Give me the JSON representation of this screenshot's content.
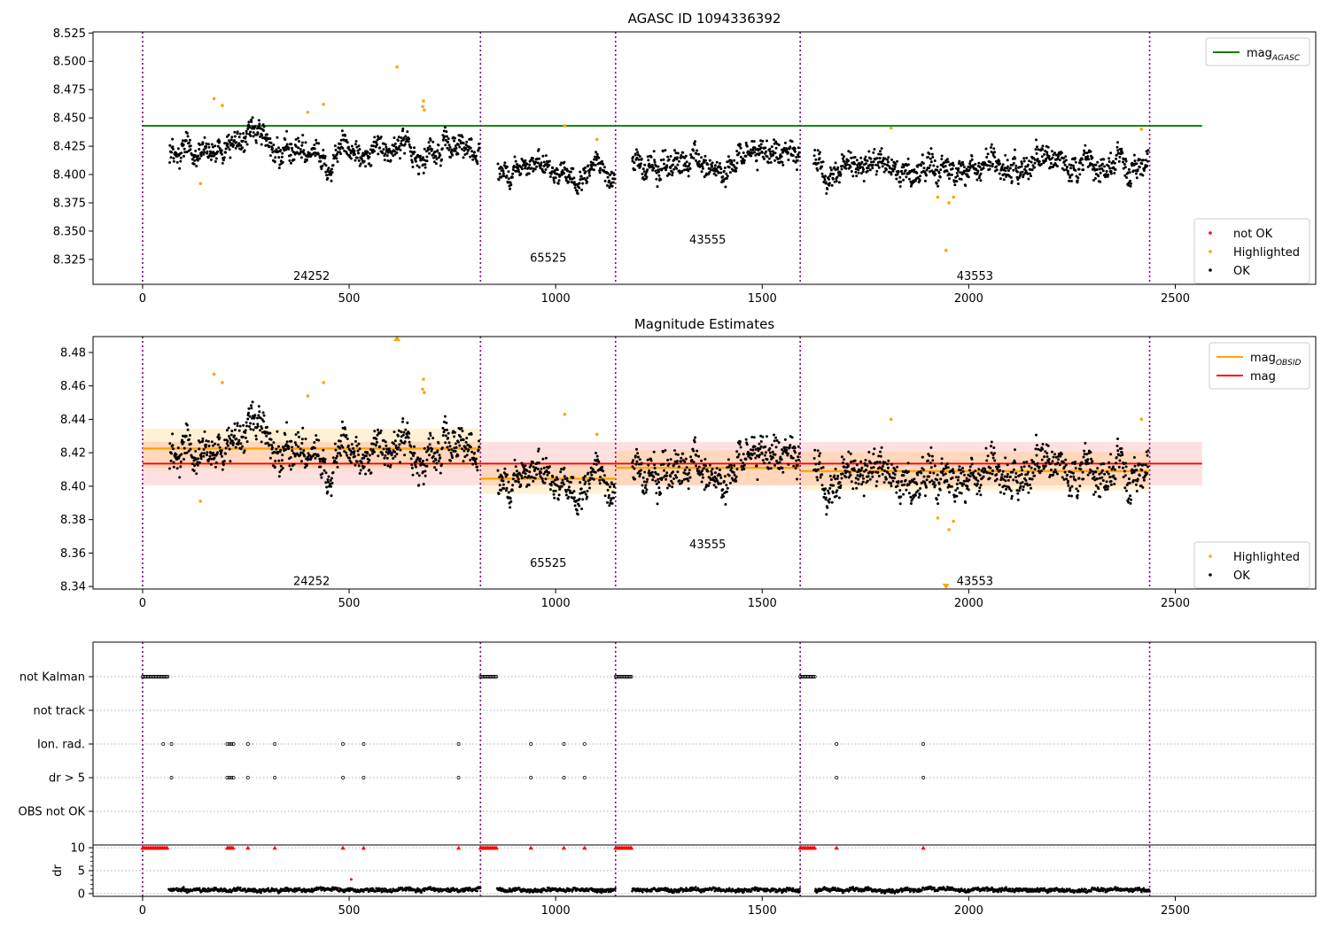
{
  "chart_data": [
    {
      "type": "scatter",
      "title": "AGASC ID 1094336392",
      "xlim": [
        -120,
        2840
      ],
      "ylim": [
        8.303,
        8.526
      ],
      "xticks": [
        0,
        500,
        1000,
        1500,
        2000,
        2500
      ],
      "yticks": [
        8.325,
        8.35,
        8.375,
        8.4,
        8.425,
        8.45,
        8.475,
        8.5,
        8.525
      ],
      "grid": false,
      "legend_top": {
        "placement": "top-right",
        "entries": [
          {
            "label": "mag",
            "subscript": "AGASC",
            "color": "#008000",
            "kind": "line"
          }
        ]
      },
      "legend_bottom": {
        "placement": "bottom-right",
        "entries": [
          {
            "label": "not OK",
            "color": "#ff0000",
            "kind": "point"
          },
          {
            "label": "Highlighted",
            "color": "#ffa500",
            "kind": "point"
          },
          {
            "label": "OK",
            "color": "#000000",
            "kind": "point"
          }
        ]
      },
      "hlines": [
        {
          "y": 8.443,
          "x0": 0,
          "x1": 2565,
          "color": "#008000",
          "name": "mag_AGASC"
        }
      ],
      "vlines": [
        0,
        818,
        1145,
        1592,
        2438
      ],
      "obsid_labels": [
        {
          "text": "24252",
          "x": 409,
          "y": 8.311
        },
        {
          "text": "65525",
          "x": 982,
          "y": 8.327
        },
        {
          "text": "43555",
          "x": 1368,
          "y": 8.343
        },
        {
          "text": "43553",
          "x": 2015,
          "y": 8.311
        }
      ],
      "series": [
        {
          "name": "OK",
          "color": "#000000",
          "segments": [
            {
              "x0": 65,
              "x1": 815,
              "mean": 8.422,
              "noise": 0.0095
            },
            {
              "x0": 860,
              "x1": 1143,
              "mean": 8.404,
              "noise": 0.0085
            },
            {
              "x0": 1185,
              "x1": 1590,
              "mean": 8.412,
              "noise": 0.01
            },
            {
              "x0": 1625,
              "x1": 2435,
              "mean": 8.408,
              "noise": 0.01
            }
          ]
        },
        {
          "name": "Highlighted",
          "color": "#ffa500",
          "points": [
            [
              140,
              8.392
            ],
            [
              173,
              8.467
            ],
            [
              193,
              8.461
            ],
            [
              400,
              8.455
            ],
            [
              438,
              8.462
            ],
            [
              616,
              8.495
            ],
            [
              680,
              8.465
            ],
            [
              678,
              8.46
            ],
            [
              682,
              8.457
            ],
            [
              1022,
              8.443
            ],
            [
              1100,
              8.431
            ],
            [
              1812,
              8.441
            ],
            [
              1925,
              8.38
            ],
            [
              1945,
              8.333
            ],
            [
              1952,
              8.375
            ],
            [
              1963,
              8.38
            ],
            [
              2418,
              8.44
            ]
          ]
        }
      ]
    },
    {
      "type": "scatter",
      "title": "Magnitude Estimates",
      "xlim": [
        -120,
        2840
      ],
      "ylim": [
        8.3385,
        8.4895
      ],
      "xticks": [
        0,
        500,
        1000,
        1500,
        2000,
        2500
      ],
      "yticks": [
        8.34,
        8.36,
        8.38,
        8.4,
        8.42,
        8.44,
        8.46,
        8.48
      ],
      "grid": false,
      "legend_top": {
        "placement": "top-right",
        "entries": [
          {
            "label": "mag",
            "subscript": "OBSID",
            "color": "#ffa500",
            "kind": "line"
          },
          {
            "label": "mag",
            "subscript": "",
            "color": "#ff0000",
            "kind": "line"
          }
        ]
      },
      "legend_bottom": {
        "placement": "bottom-right",
        "entries": [
          {
            "label": "Highlighted",
            "color": "#ffa500",
            "kind": "point"
          },
          {
            "label": "OK",
            "color": "#000000",
            "kind": "point"
          }
        ]
      },
      "mag": {
        "y": 8.4135,
        "band": [
          8.4005,
          8.4265
        ],
        "x0": 0,
        "x1": 2565
      },
      "mag_obsid": [
        {
          "x0": 0,
          "x1": 818,
          "y": 8.4225,
          "band": [
            8.4105,
            8.4345
          ]
        },
        {
          "x0": 818,
          "x1": 1145,
          "y": 8.4045,
          "band": [
            8.3955,
            8.4135
          ]
        },
        {
          "x0": 1145,
          "x1": 1592,
          "y": 8.411,
          "band": [
            8.4005,
            8.4215
          ]
        },
        {
          "x0": 1592,
          "x1": 2438,
          "y": 8.409,
          "band": [
            8.3975,
            8.4205
          ]
        }
      ],
      "vlines": [
        0,
        818,
        1145,
        1592,
        2438
      ],
      "obsid_labels": [
        {
          "text": "24252",
          "x": 409,
          "y": 8.3435
        },
        {
          "text": "65525",
          "x": 982,
          "y": 8.3545
        },
        {
          "text": "43555",
          "x": 1368,
          "y": 8.3655
        },
        {
          "text": "43553",
          "x": 2015,
          "y": 8.3435
        }
      ],
      "highlighted_points": [
        [
          140,
          8.391
        ],
        [
          173,
          8.467
        ],
        [
          193,
          8.462
        ],
        [
          400,
          8.454
        ],
        [
          438,
          8.462
        ],
        [
          680,
          8.464
        ],
        [
          678,
          8.458
        ],
        [
          682,
          8.456
        ],
        [
          1022,
          8.443
        ],
        [
          1100,
          8.431
        ],
        [
          1812,
          8.44
        ],
        [
          1925,
          8.381
        ],
        [
          1952,
          8.374
        ],
        [
          1963,
          8.379
        ],
        [
          2418,
          8.44
        ]
      ],
      "clipped_markers": [
        {
          "x": 616,
          "edge": "top"
        },
        {
          "x": 1945,
          "edge": "bottom"
        }
      ]
    },
    {
      "type": "scatter",
      "title": "",
      "xlim": [
        -120,
        2840
      ],
      "xticks": [
        0,
        500,
        1000,
        1500,
        2000,
        2500
      ],
      "flag_rows": [
        "not Kalman",
        "not track",
        "Ion. rad.",
        "dr > 5",
        "OBS not OK"
      ],
      "flags": {
        "not Kalman": [
          [
            0,
            62
          ],
          [
            818,
            858
          ],
          [
            1145,
            1185
          ],
          [
            1592,
            1628
          ]
        ],
        "Ion. rad.": [
          50,
          70,
          205,
          210,
          215,
          220,
          255,
          320,
          485,
          535,
          765,
          940,
          1020,
          1070,
          1680,
          1890
        ],
        "dr > 5": [
          70,
          205,
          210,
          215,
          220,
          255,
          320,
          485,
          535,
          765,
          940,
          1020,
          1070,
          1680,
          1890
        ]
      },
      "dr_panel": {
        "ylabel": "dr",
        "yticks": [
          0,
          5,
          10
        ],
        "ylim": [
          -0.6,
          10.6
        ],
        "clipped_at_10": [
          [
            0,
            62
          ],
          [
            205,
            222
          ],
          255,
          320,
          485,
          535,
          765,
          [
            818,
            858
          ],
          940,
          1020,
          1070,
          [
            1145,
            1185
          ],
          [
            1592,
            1628
          ],
          1680,
          1890
        ],
        "red_points": [
          [
            505,
            3.1
          ]
        ],
        "typical": {
          "mean": 0.8,
          "noise": 0.35
        },
        "gaps": [
          [
            0,
            62
          ],
          [
            818,
            858
          ],
          [
            1145,
            1185
          ],
          [
            1592,
            1628
          ]
        ],
        "last_x": 2438
      },
      "vlines": [
        0,
        818,
        1145,
        1592,
        2438
      ]
    }
  ]
}
